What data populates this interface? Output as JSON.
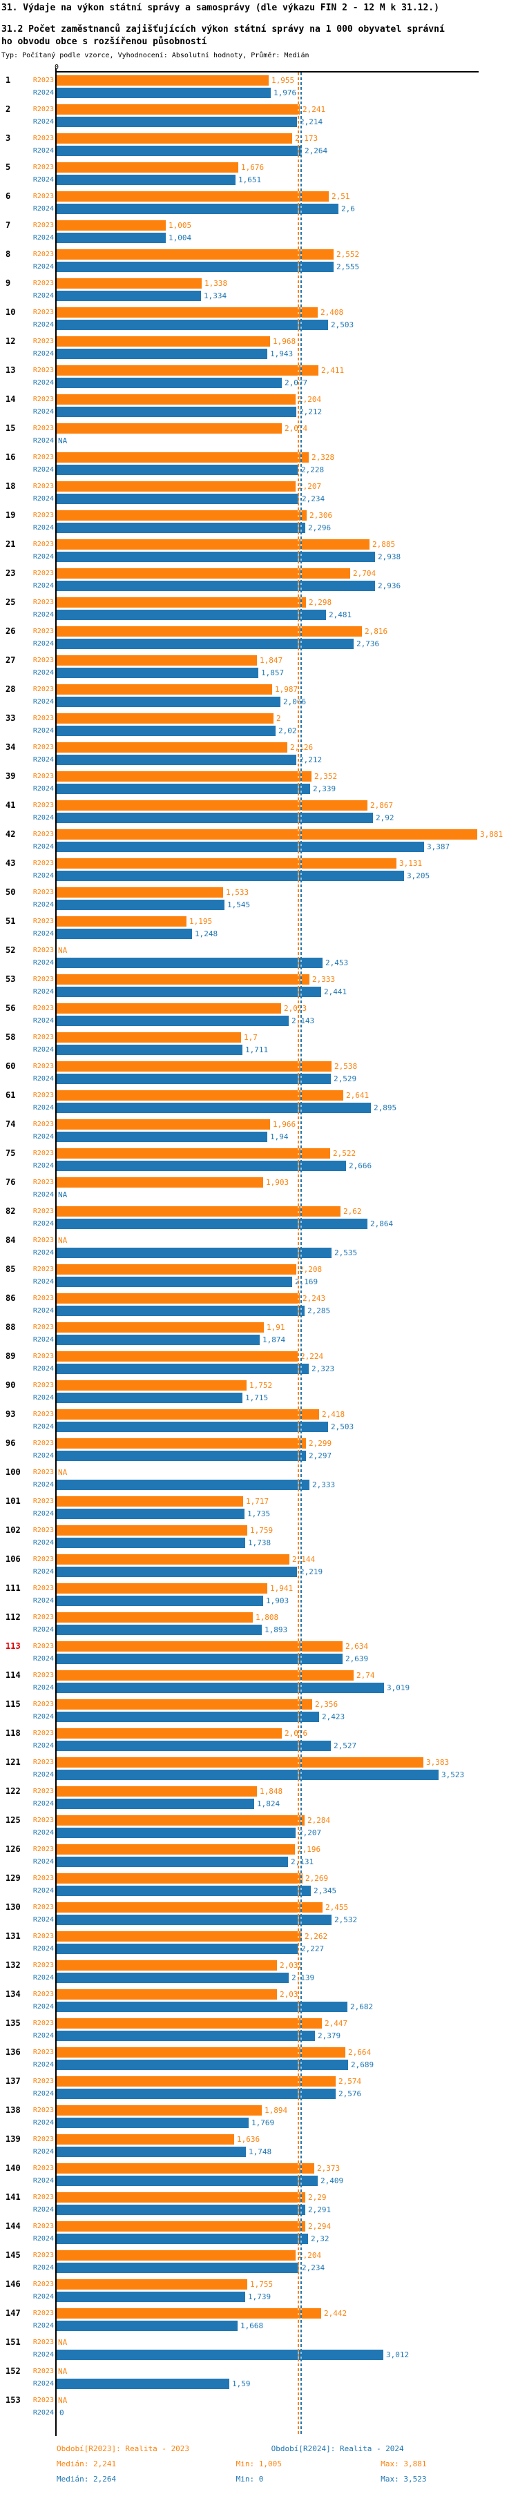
{
  "header": {
    "title": "31. Výdaje na výkon státní správy a samosprávy (dle výkazu FIN 2 - 12 M k 31.12.)",
    "subtitle": "31.2 Počet zaměstnanců zajišťujících výkon státní správy na 1 000 obyvatel správního obvodu obce s rozšířenou působností",
    "meta": "Typ: Počítaný podle vzorce, Vyhodnocení: Absolutní hodnoty, Průměr: Medián"
  },
  "axis": {
    "zero_label": "0"
  },
  "colors": {
    "r2023": "#FD820D",
    "r2024": "#2077B4",
    "highlight": "#DD0000"
  },
  "legend": {
    "period_2023": "Období[R2023]: Realita - 2023",
    "period_2024": "Období[R2024]: Realita - 2024",
    "median_2023": "Medián: 2,241",
    "min_2023": "Min: 1,005",
    "max_2023": "Max: 3,881",
    "median_2024": "Medián: 2,264",
    "min_2024": "Min: 0",
    "max_2024": "Max: 3,523"
  },
  "chart_data": {
    "type": "bar",
    "orientation": "horizontal",
    "series_names": [
      "R2023",
      "R2024"
    ],
    "xlim": [
      0,
      3.9
    ],
    "median_2023": 2.241,
    "median_2024": 2.264,
    "na_text": "NA",
    "rows": [
      {
        "id": "1",
        "r2023": "1,955",
        "r2024": "1,976"
      },
      {
        "id": "2",
        "r2023": "2,241",
        "r2024": "2,214"
      },
      {
        "id": "3",
        "r2023": "2,173",
        "r2024": "2,264"
      },
      {
        "id": "5",
        "r2023": "1,676",
        "r2024": "1,651"
      },
      {
        "id": "6",
        "r2023": "2,51",
        "r2024": "2,6"
      },
      {
        "id": "7",
        "r2023": "1,005",
        "r2024": "1,004"
      },
      {
        "id": "8",
        "r2023": "2,552",
        "r2024": "2,555"
      },
      {
        "id": "9",
        "r2023": "1,338",
        "r2024": "1,334"
      },
      {
        "id": "10",
        "r2023": "2,408",
        "r2024": "2,503"
      },
      {
        "id": "12",
        "r2023": "1,968",
        "r2024": "1,943"
      },
      {
        "id": "13",
        "r2023": "2,411",
        "r2024": "2,077"
      },
      {
        "id": "14",
        "r2023": "2,204",
        "r2024": "2,212"
      },
      {
        "id": "15",
        "r2023": "2,074",
        "r2024": "NA"
      },
      {
        "id": "16",
        "r2023": "2,328",
        "r2024": "2,228"
      },
      {
        "id": "18",
        "r2023": "2,207",
        "r2024": "2,234"
      },
      {
        "id": "19",
        "r2023": "2,306",
        "r2024": "2,296"
      },
      {
        "id": "21",
        "r2023": "2,885",
        "r2024": "2,938"
      },
      {
        "id": "23",
        "r2023": "2,704",
        "r2024": "2,936"
      },
      {
        "id": "25",
        "r2023": "2,298",
        "r2024": "2,481"
      },
      {
        "id": "26",
        "r2023": "2,816",
        "r2024": "2,736"
      },
      {
        "id": "27",
        "r2023": "1,847",
        "r2024": "1,857"
      },
      {
        "id": "28",
        "r2023": "1,987",
        "r2024": "2,066"
      },
      {
        "id": "33",
        "r2023": "2",
        "r2024": "2,02"
      },
      {
        "id": "34",
        "r2023": "2,126",
        "r2024": "2,212"
      },
      {
        "id": "39",
        "r2023": "2,352",
        "r2024": "2,339"
      },
      {
        "id": "41",
        "r2023": "2,867",
        "r2024": "2,92"
      },
      {
        "id": "42",
        "r2023": "3,881",
        "r2024": "3,387"
      },
      {
        "id": "43",
        "r2023": "3,131",
        "r2024": "3,205"
      },
      {
        "id": "50",
        "r2023": "1,533",
        "r2024": "1,545"
      },
      {
        "id": "51",
        "r2023": "1,195",
        "r2024": "1,248"
      },
      {
        "id": "52",
        "r2023": "NA",
        "r2024": "2,453"
      },
      {
        "id": "53",
        "r2023": "2,333",
        "r2024": "2,441"
      },
      {
        "id": "56",
        "r2023": "2,073",
        "r2024": "2,143"
      },
      {
        "id": "58",
        "r2023": "1,7",
        "r2024": "1,711"
      },
      {
        "id": "60",
        "r2023": "2,538",
        "r2024": "2,529"
      },
      {
        "id": "61",
        "r2023": "2,641",
        "r2024": "2,895"
      },
      {
        "id": "74",
        "r2023": "1,966",
        "r2024": "1,94"
      },
      {
        "id": "75",
        "r2023": "2,522",
        "r2024": "2,666"
      },
      {
        "id": "76",
        "r2023": "1,903",
        "r2024": "NA"
      },
      {
        "id": "82",
        "r2023": "2,62",
        "r2024": "2,864"
      },
      {
        "id": "84",
        "r2023": "NA",
        "r2024": "2,535"
      },
      {
        "id": "85",
        "r2023": "2,208",
        "r2024": "2,169"
      },
      {
        "id": "86",
        "r2023": "2,243",
        "r2024": "2,285"
      },
      {
        "id": "88",
        "r2023": "1,91",
        "r2024": "1,874"
      },
      {
        "id": "89",
        "r2023": "2,224",
        "r2024": "2,323"
      },
      {
        "id": "90",
        "r2023": "1,752",
        "r2024": "1,715"
      },
      {
        "id": "93",
        "r2023": "2,418",
        "r2024": "2,503"
      },
      {
        "id": "96",
        "r2023": "2,299",
        "r2024": "2,297"
      },
      {
        "id": "100",
        "r2023": "NA",
        "r2024": "2,333"
      },
      {
        "id": "101",
        "r2023": "1,717",
        "r2024": "1,735"
      },
      {
        "id": "102",
        "r2023": "1,759",
        "r2024": "1,738"
      },
      {
        "id": "106",
        "r2023": "2,144",
        "r2024": "2,219"
      },
      {
        "id": "111",
        "r2023": "1,941",
        "r2024": "1,903"
      },
      {
        "id": "112",
        "r2023": "1,808",
        "r2024": "1,893"
      },
      {
        "id": "113",
        "r2023": "2,634",
        "r2024": "2,639",
        "highlight": true
      },
      {
        "id": "114",
        "r2023": "2,74",
        "r2024": "3,019"
      },
      {
        "id": "115",
        "r2023": "2,356",
        "r2024": "2,423"
      },
      {
        "id": "118",
        "r2023": "2,076",
        "r2024": "2,527"
      },
      {
        "id": "121",
        "r2023": "3,383",
        "r2024": "3,523"
      },
      {
        "id": "122",
        "r2023": "1,848",
        "r2024": "1,824"
      },
      {
        "id": "125",
        "r2023": "2,284",
        "r2024": "2,207"
      },
      {
        "id": "126",
        "r2023": "2,196",
        "r2024": "2,131"
      },
      {
        "id": "129",
        "r2023": "2,269",
        "r2024": "2,345"
      },
      {
        "id": "130",
        "r2023": "2,455",
        "r2024": "2,532"
      },
      {
        "id": "131",
        "r2023": "2,262",
        "r2024": "2,227"
      },
      {
        "id": "132",
        "r2023": "2,032",
        "r2024": "2,139"
      },
      {
        "id": "134",
        "r2023": "2,03",
        "r2024": "2,682"
      },
      {
        "id": "135",
        "r2023": "2,447",
        "r2024": "2,379"
      },
      {
        "id": "136",
        "r2023": "2,664",
        "r2024": "2,689"
      },
      {
        "id": "137",
        "r2023": "2,574",
        "r2024": "2,576"
      },
      {
        "id": "138",
        "r2023": "1,894",
        "r2024": "1,769"
      },
      {
        "id": "139",
        "r2023": "1,636",
        "r2024": "1,748"
      },
      {
        "id": "140",
        "r2023": "2,373",
        "r2024": "2,409"
      },
      {
        "id": "141",
        "r2023": "2,29",
        "r2024": "2,291"
      },
      {
        "id": "144",
        "r2023": "2,294",
        "r2024": "2,32"
      },
      {
        "id": "145",
        "r2023": "2,204",
        "r2024": "2,234"
      },
      {
        "id": "146",
        "r2023": "1,755",
        "r2024": "1,739"
      },
      {
        "id": "147",
        "r2023": "2,442",
        "r2024": "1,668"
      },
      {
        "id": "151",
        "r2023": "NA",
        "r2024": "3,012"
      },
      {
        "id": "152",
        "r2023": "NA",
        "r2024": "1,59"
      },
      {
        "id": "153",
        "r2023": "NA",
        "r2024": "0"
      }
    ]
  }
}
